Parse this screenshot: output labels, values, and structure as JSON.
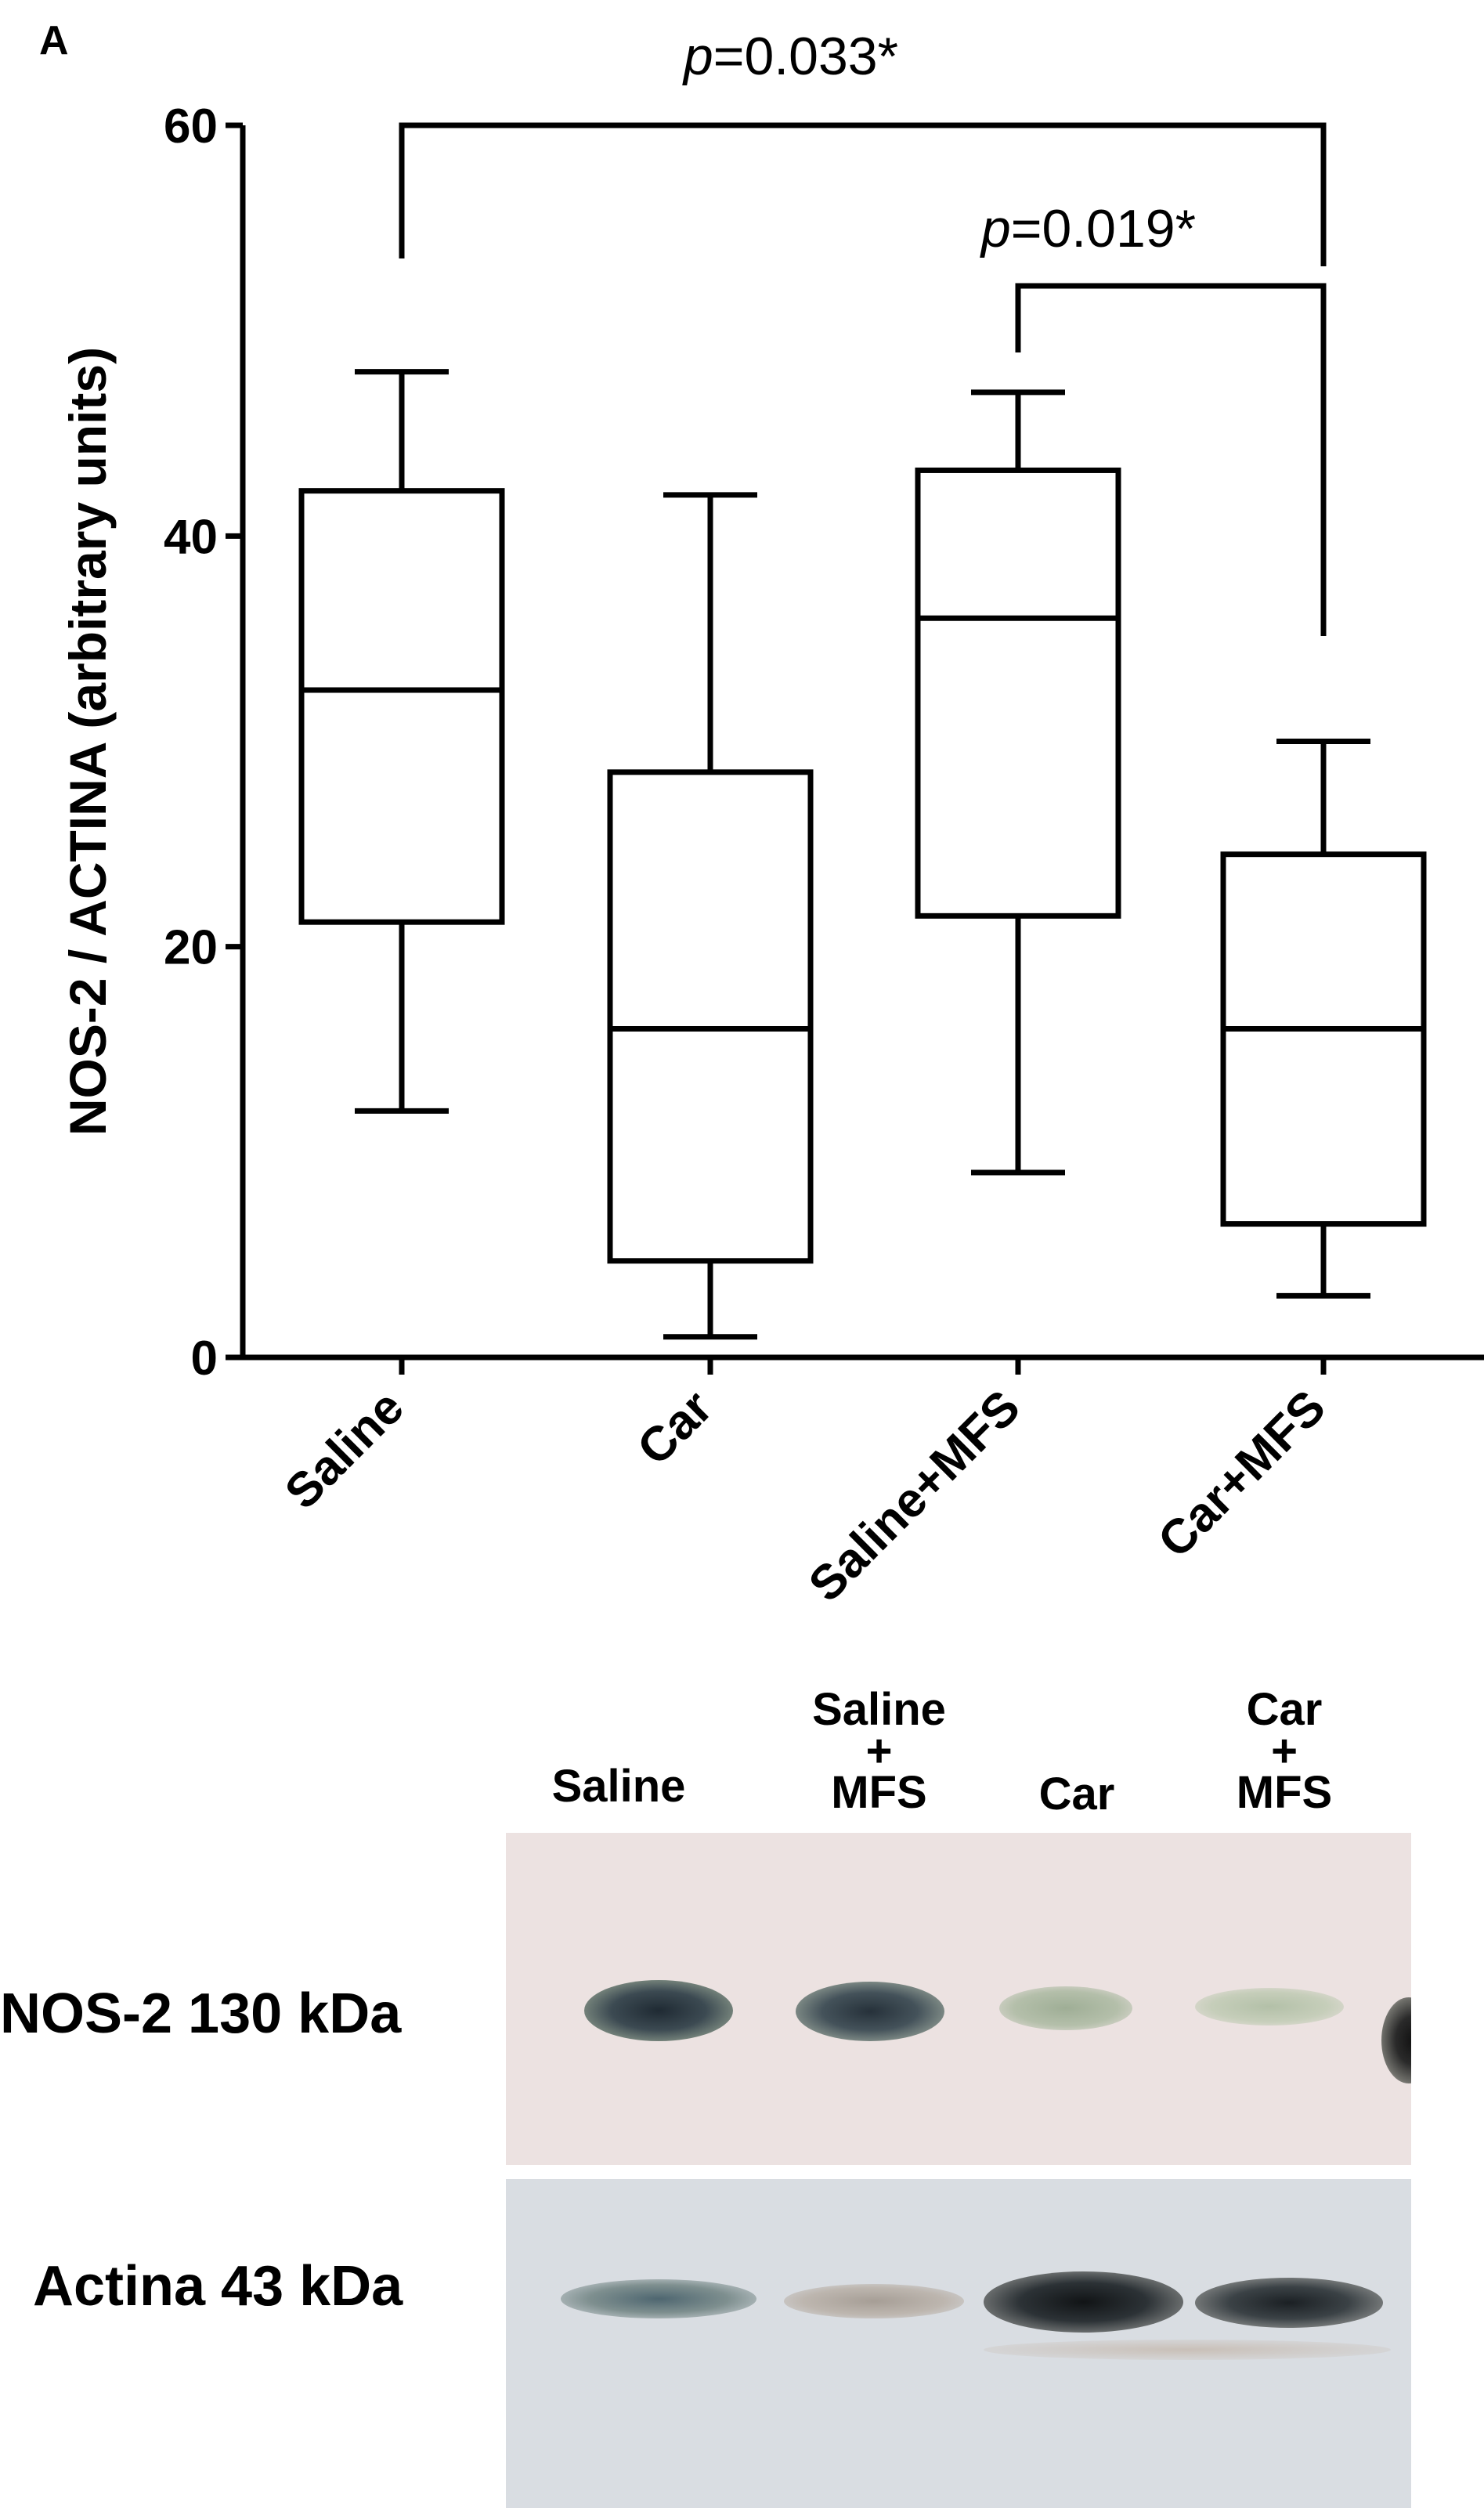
{
  "panel_letter": "A",
  "chart_data": {
    "type": "box",
    "ylabel": "NOS-2 / ACTINA (arbitrary units)",
    "xlabel": "",
    "ylim": [
      0,
      60
    ],
    "yticks": [
      0,
      20,
      40,
      60
    ],
    "categories": [
      "Saline",
      "Car",
      "Saline+MFS",
      "Car+MFS"
    ],
    "boxes": [
      {
        "category": "Saline",
        "min": 12,
        "q1": 21.2,
        "median": 32.5,
        "q3": 42.2,
        "max": 48
      },
      {
        "category": "Car",
        "min": 1,
        "q1": 4.7,
        "median": 16,
        "q3": 28.5,
        "max": 42
      },
      {
        "category": "Saline+MFS",
        "min": 9,
        "q1": 21.5,
        "median": 36,
        "q3": 43.2,
        "max": 47
      },
      {
        "category": "Car+MFS",
        "min": 3,
        "q1": 6.5,
        "median": 16,
        "q3": 24.5,
        "max": 30
      }
    ],
    "comparisons": [
      {
        "from": "Saline",
        "to": "Car+MFS",
        "label": "p",
        "value": "=0.033*"
      },
      {
        "from": "Saline+MFS",
        "to": "Car+MFS",
        "label": "p",
        "value": "=0.019*"
      }
    ]
  },
  "blot": {
    "lanes": [
      {
        "lines": [
          "Saline"
        ]
      },
      {
        "lines": [
          "Saline",
          "+",
          "MFS"
        ]
      },
      {
        "lines": [
          "Car"
        ]
      },
      {
        "lines": [
          "Car",
          "+",
          "MFS"
        ]
      }
    ],
    "rows": [
      {
        "label": "NOS-2 130 kDa"
      },
      {
        "label": "Actina 43 kDa"
      }
    ]
  }
}
